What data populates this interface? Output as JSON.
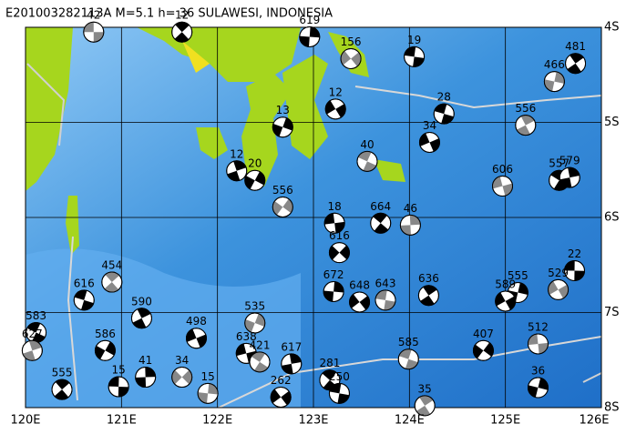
{
  "map": {
    "title": "E201003282113A M=5.1 h= 36 SULAWESI, INDONESIA",
    "xlim": [
      120,
      126
    ],
    "ylim": [
      -8,
      -4
    ],
    "xticks": [
      {
        "value": 120,
        "label": "120E"
      },
      {
        "value": 121,
        "label": "121E"
      },
      {
        "value": 122,
        "label": "122E"
      },
      {
        "value": 123,
        "label": "123E"
      },
      {
        "value": 124,
        "label": "124E"
      },
      {
        "value": 125,
        "label": "125E"
      },
      {
        "value": 126,
        "label": "126E"
      }
    ],
    "yticks": [
      {
        "value": -4,
        "label": "4S"
      },
      {
        "value": -5,
        "label": "5S"
      },
      {
        "value": -6,
        "label": "6S"
      },
      {
        "value": -7,
        "label": "7S"
      },
      {
        "value": -8,
        "label": "8S"
      }
    ],
    "grid": true,
    "events": [
      {
        "depth": 42,
        "lon": 120.71,
        "lat": -4.05
      },
      {
        "depth": 12,
        "lon": 121.63,
        "lat": -4.05
      },
      {
        "depth": 619,
        "lon": 122.96,
        "lat": -4.1
      },
      {
        "depth": 156,
        "lon": 123.39,
        "lat": -4.33
      },
      {
        "depth": 19,
        "lon": 124.05,
        "lat": -4.31
      },
      {
        "depth": 481,
        "lon": 125.73,
        "lat": -4.38
      },
      {
        "depth": 466,
        "lon": 125.51,
        "lat": -4.57
      },
      {
        "depth": 12,
        "lon": 123.23,
        "lat": -4.86
      },
      {
        "depth": 28,
        "lon": 124.36,
        "lat": -4.91
      },
      {
        "depth": 556,
        "lon": 125.21,
        "lat": -5.03
      },
      {
        "depth": 13,
        "lon": 122.68,
        "lat": -5.05
      },
      {
        "depth": 34,
        "lon": 124.21,
        "lat": -5.21
      },
      {
        "depth": 40,
        "lon": 123.56,
        "lat": -5.41
      },
      {
        "depth": 12,
        "lon": 122.2,
        "lat": -5.51
      },
      {
        "depth": 20,
        "lon": 122.39,
        "lat": -5.61
      },
      {
        "depth": 606,
        "lon": 124.97,
        "lat": -5.67
      },
      {
        "depth": 557,
        "lon": 125.56,
        "lat": -5.61
      },
      {
        "depth": 579,
        "lon": 125.67,
        "lat": -5.58
      },
      {
        "depth": 556,
        "lon": 122.68,
        "lat": -5.89
      },
      {
        "depth": 18,
        "lon": 123.22,
        "lat": -6.06
      },
      {
        "depth": 664,
        "lon": 123.7,
        "lat": -6.06
      },
      {
        "depth": 46,
        "lon": 124.01,
        "lat": -6.08
      },
      {
        "depth": 616,
        "lon": 123.27,
        "lat": -6.37
      },
      {
        "depth": 22,
        "lon": 125.72,
        "lat": -6.56
      },
      {
        "depth": 454,
        "lon": 120.9,
        "lat": -6.68
      },
      {
        "depth": 672,
        "lon": 123.21,
        "lat": -6.78
      },
      {
        "depth": 648,
        "lon": 123.48,
        "lat": -6.89
      },
      {
        "depth": 643,
        "lon": 123.75,
        "lat": -6.87
      },
      {
        "depth": 636,
        "lon": 124.2,
        "lat": -6.82
      },
      {
        "depth": 555,
        "lon": 125.13,
        "lat": -6.79
      },
      {
        "depth": 529,
        "lon": 125.55,
        "lat": -6.76
      },
      {
        "depth": 616,
        "lon": 120.61,
        "lat": -6.87
      },
      {
        "depth": 590,
        "lon": 121.21,
        "lat": -7.06
      },
      {
        "depth": 535,
        "lon": 122.39,
        "lat": -7.11
      },
      {
        "depth": 498,
        "lon": 121.78,
        "lat": -7.27
      },
      {
        "depth": 583,
        "lon": 120.11,
        "lat": -7.21
      },
      {
        "depth": 627,
        "lon": 120.07,
        "lat": -7.4
      },
      {
        "depth": 586,
        "lon": 120.83,
        "lat": -7.4
      },
      {
        "depth": 638,
        "lon": 122.3,
        "lat": -7.43
      },
      {
        "depth": 421,
        "lon": 122.44,
        "lat": -7.52
      },
      {
        "depth": 617,
        "lon": 122.77,
        "lat": -7.54
      },
      {
        "depth": 407,
        "lon": 124.77,
        "lat": -7.4
      },
      {
        "depth": 512,
        "lon": 125.34,
        "lat": -7.33
      },
      {
        "depth": 281,
        "lon": 123.17,
        "lat": -7.71
      },
      {
        "depth": 41,
        "lon": 121.25,
        "lat": -7.68
      },
      {
        "depth": 34,
        "lon": 121.63,
        "lat": -7.68
      },
      {
        "depth": 15,
        "lon": 120.97,
        "lat": -7.78
      },
      {
        "depth": 555,
        "lon": 120.38,
        "lat": -7.81
      },
      {
        "depth": 15,
        "lon": 121.9,
        "lat": -7.85
      },
      {
        "depth": 262,
        "lon": 122.66,
        "lat": -7.89
      },
      {
        "depth": 250,
        "lon": 123.27,
        "lat": -7.85
      },
      {
        "depth": 35,
        "lon": 124.16,
        "lat": -7.98
      },
      {
        "depth": 36,
        "lon": 125.34,
        "lat": -7.79
      },
      {
        "depth": 589,
        "lon": 125.0,
        "lat": -6.88
      },
      {
        "depth": 585,
        "lon": 123.99,
        "lat": -7.49
      }
    ]
  }
}
